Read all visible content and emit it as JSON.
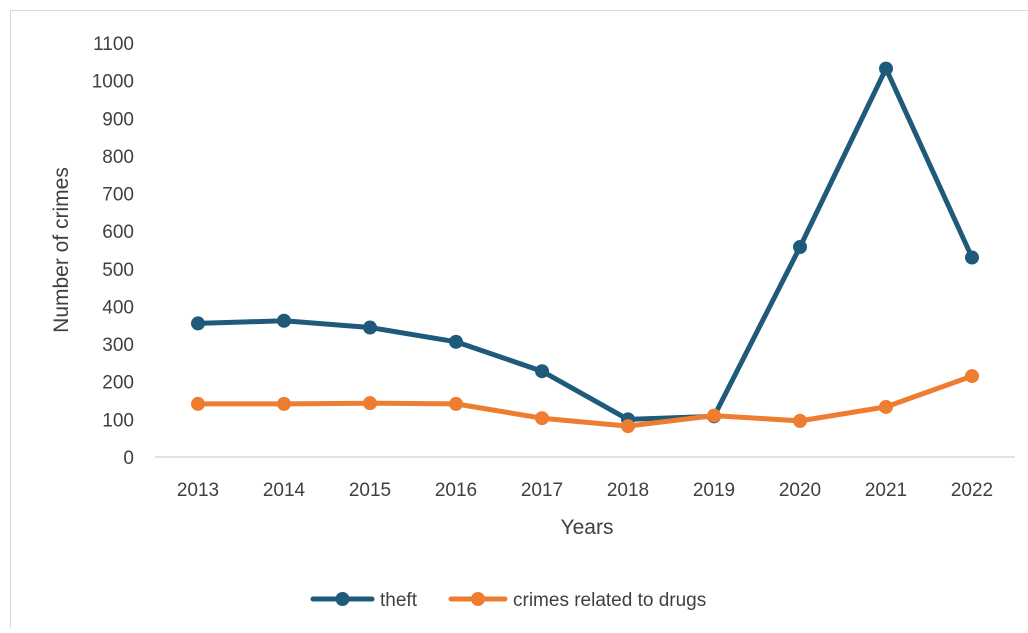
{
  "chart_data": {
    "type": "line",
    "title": "",
    "xlabel": "Years",
    "ylabel": "Number of crimes",
    "x": [
      "2013",
      "2014",
      "2015",
      "2016",
      "2017",
      "2018",
      "2019",
      "2020",
      "2021",
      "2022"
    ],
    "ylim": [
      0,
      1100
    ],
    "yticks": [
      0,
      100,
      200,
      300,
      400,
      500,
      600,
      700,
      800,
      900,
      1000,
      1100
    ],
    "grid": false,
    "legend_position": "bottom",
    "series": [
      {
        "name": "theft",
        "color": "#1f5a7a",
        "values": [
          355,
          362,
          344,
          306,
          228,
          100,
          108,
          558,
          1032,
          530
        ]
      },
      {
        "name": "crimes related to drugs",
        "color": "#ee7d31",
        "values": [
          141,
          141,
          143,
          141,
          103,
          82,
          110,
          96,
          133,
          215
        ]
      }
    ]
  }
}
